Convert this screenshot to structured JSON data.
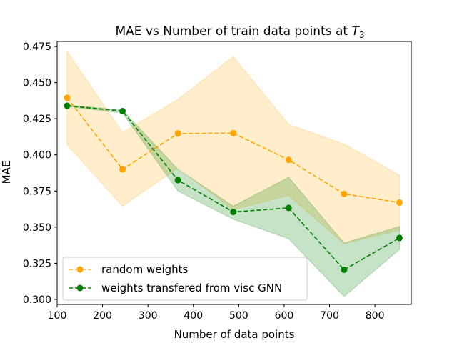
{
  "chart_data": {
    "type": "line",
    "title_text": "MAE vs Number of train data points at ",
    "title_math_base": "T",
    "title_math_sub": "3",
    "xlabel": "Number of data points",
    "ylabel": "MAE",
    "xlim": [
      100,
      880
    ],
    "ylim": [
      0.2965,
      0.4785
    ],
    "xticks": [
      100,
      200,
      300,
      400,
      500,
      600,
      700,
      800
    ],
    "yticks": [
      0.3,
      0.325,
      0.35,
      0.375,
      0.4,
      0.425,
      0.45,
      0.475
    ],
    "ytick_labels": [
      "0.300",
      "0.325",
      "0.350",
      "0.375",
      "0.400",
      "0.425",
      "0.450",
      "0.475"
    ],
    "grid": false,
    "legend_position": "lower-left",
    "x": [
      122,
      244,
      366,
      488,
      610,
      732,
      854
    ],
    "series": [
      {
        "name": "random weights",
        "color": "#ffa500",
        "band_color": "#ffa500",
        "values": [
          0.4395,
          0.39,
          0.4148,
          0.415,
          0.3965,
          0.373,
          0.367
        ],
        "upper": [
          0.4715,
          0.4155,
          0.4385,
          0.468,
          0.421,
          0.4075,
          0.386
        ],
        "lower": [
          0.407,
          0.3645,
          0.391,
          0.362,
          0.372,
          0.3385,
          0.348
        ]
      },
      {
        "name": "weights transfered from visc GNN",
        "color": "#008000",
        "band_color": "#008000",
        "values": [
          0.434,
          0.4303,
          0.3825,
          0.3605,
          0.3633,
          0.3205,
          0.3425
        ],
        "upper": [
          0.4345,
          0.431,
          0.39,
          0.3645,
          0.3845,
          0.339,
          0.3505
        ],
        "lower": [
          0.4335,
          0.429,
          0.375,
          0.3555,
          0.342,
          0.302,
          0.3345
        ]
      }
    ]
  }
}
